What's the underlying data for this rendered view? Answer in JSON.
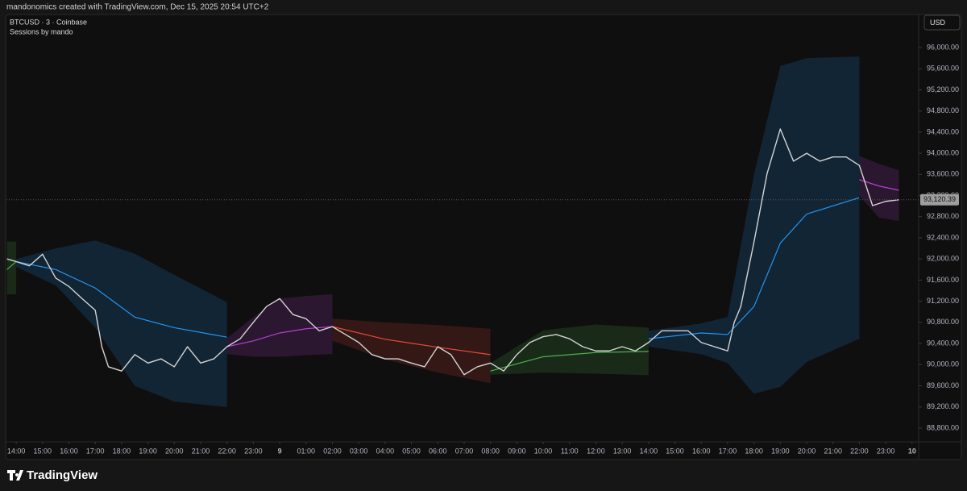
{
  "header": {
    "text": "mandonomics created with TradingView.com, Dec 15, 2025 20:54 UTC+2"
  },
  "chart_data": {
    "type": "line",
    "title": "BTCUSD · 3 · Coinbase",
    "subtitle": "Sessions by mando",
    "currency": "USD",
    "x": [
      13.65,
      14,
      14.5,
      15,
      15.5,
      16,
      16.5,
      17,
      17.25,
      17.5,
      18,
      18.5,
      19,
      19.5,
      20,
      20.5,
      21,
      21.5,
      22,
      22.5,
      23,
      23.5,
      24,
      24.5,
      25,
      25.5,
      26,
      26.5,
      27,
      27.5,
      28,
      28.5,
      29,
      29.5,
      30,
      30.5,
      31,
      31.5,
      32,
      32.5,
      33,
      33.5,
      34,
      34.5,
      35,
      35.5,
      36,
      36.5,
      37,
      37.5,
      38,
      38.5,
      39,
      39.5,
      40,
      40.5,
      41,
      41.25,
      41.5,
      42,
      42.5,
      43,
      43.5,
      44,
      44.5,
      45,
      45.5,
      46,
      46.5,
      47,
      47.5
    ],
    "series": [
      {
        "color": "#d4d4d4",
        "values": [
          92000,
          91950,
          91870,
          92090,
          91640,
          91480,
          91250,
          91030,
          90340,
          89960,
          89880,
          90190,
          90030,
          90110,
          89960,
          90340,
          90030,
          90110,
          90340,
          90490,
          90800,
          91100,
          91250,
          90950,
          90870,
          90640,
          90720,
          90570,
          90420,
          90190,
          90110,
          90110,
          90030,
          89960,
          90340,
          90190,
          89810,
          89960,
          90030,
          89880,
          90190,
          90420,
          90530,
          90570,
          90490,
          90340,
          90260,
          90260,
          90340,
          90260,
          90420,
          90640,
          90640,
          90640,
          90420,
          90340,
          90260,
          90800,
          91100,
          92320,
          93620,
          94460,
          93850,
          94000,
          93850,
          93930,
          93930,
          93770,
          93010,
          93090,
          93120
        ]
      }
    ],
    "last_price": {
      "value": 93120.39,
      "label": "93,120.39"
    },
    "sessions": [
      {
        "color": "#4caf50",
        "x": [
          13.65,
          14
        ],
        "vwap": [
          91800,
          91950
        ],
        "upper": [
          92330,
          92330
        ],
        "lower": [
          91330,
          91330
        ]
      },
      {
        "color": "#2196f3",
        "x": [
          14,
          15.5,
          17,
          18.5,
          20,
          22
        ],
        "vwap": [
          91950,
          91800,
          91450,
          90900,
          90700,
          90520
        ],
        "upper": [
          92000,
          92200,
          92350,
          92100,
          91700,
          91180
        ],
        "lower": [
          91850,
          91500,
          90700,
          89600,
          89300,
          89200
        ]
      },
      {
        "color": "#b63fd0",
        "x": [
          22,
          23,
          24,
          25,
          26
        ],
        "vwap": [
          90340,
          90450,
          90600,
          90680,
          90720
        ],
        "upper": [
          90500,
          90900,
          91250,
          91300,
          91330
        ],
        "lower": [
          90200,
          90150,
          90150,
          90180,
          90200
        ]
      },
      {
        "color": "#e8483a",
        "x": [
          26,
          28,
          30,
          32
        ],
        "vwap": [
          90720,
          90480,
          90330,
          90190
        ],
        "upper": [
          90870,
          90800,
          90750,
          90680
        ],
        "lower": [
          90450,
          90100,
          89850,
          89650
        ]
      },
      {
        "color": "#4caf50",
        "x": [
          32,
          34,
          36,
          38
        ],
        "vwap": [
          89880,
          90150,
          90230,
          90250
        ],
        "upper": [
          90030,
          90650,
          90760,
          90700
        ],
        "lower": [
          89810,
          89850,
          89830,
          89800
        ]
      },
      {
        "color": "#2196f3",
        "x": [
          38,
          40,
          41,
          42,
          43,
          44,
          46
        ],
        "vwap": [
          90490,
          90600,
          90570,
          91100,
          92300,
          92850,
          93160
        ],
        "upper": [
          90640,
          90780,
          90900,
          93600,
          95650,
          95800,
          95830
        ],
        "lower": [
          90340,
          90200,
          90030,
          89450,
          89580,
          90050,
          90490
        ]
      },
      {
        "color": "#b63fd0",
        "x": [
          46,
          46.75,
          47.5
        ],
        "vwap": [
          93500,
          93380,
          93300
        ],
        "upper": [
          93950,
          93800,
          93680
        ],
        "lower": [
          93200,
          92780,
          92720
        ]
      }
    ],
    "xlim": [
      13.63,
      48.25
    ],
    "xticks": [
      {
        "value": 14,
        "label": "14:00"
      },
      {
        "value": 15,
        "label": "15:00"
      },
      {
        "value": 16,
        "label": "16:00"
      },
      {
        "value": 17,
        "label": "17:00"
      },
      {
        "value": 18,
        "label": "18:00"
      },
      {
        "value": 19,
        "label": "19:00"
      },
      {
        "value": 20,
        "label": "20:00"
      },
      {
        "value": 21,
        "label": "21:00"
      },
      {
        "value": 22,
        "label": "22:00"
      },
      {
        "value": 23,
        "label": "23:00"
      },
      {
        "value": 24,
        "label": "9"
      },
      {
        "value": 25,
        "label": "01:00"
      },
      {
        "value": 26,
        "label": "02:00"
      },
      {
        "value": 27,
        "label": "03:00"
      },
      {
        "value": 28,
        "label": "04:00"
      },
      {
        "value": 29,
        "label": "05:00"
      },
      {
        "value": 30,
        "label": "06:00"
      },
      {
        "value": 31,
        "label": "07:00"
      },
      {
        "value": 32,
        "label": "08:00"
      },
      {
        "value": 33,
        "label": "09:00"
      },
      {
        "value": 34,
        "label": "10:00"
      },
      {
        "value": 35,
        "label": "11:00"
      },
      {
        "value": 36,
        "label": "12:00"
      },
      {
        "value": 37,
        "label": "13:00"
      },
      {
        "value": 38,
        "label": "14:00"
      },
      {
        "value": 39,
        "label": "15:00"
      },
      {
        "value": 40,
        "label": "16:00"
      },
      {
        "value": 41,
        "label": "17:00"
      },
      {
        "value": 42,
        "label": "18:00"
      },
      {
        "value": 43,
        "label": "19:00"
      },
      {
        "value": 44,
        "label": "20:00"
      },
      {
        "value": 45,
        "label": "21:00"
      },
      {
        "value": 46,
        "label": "22:00"
      },
      {
        "value": 47,
        "label": "23:00"
      },
      {
        "value": 48,
        "label": "10"
      }
    ],
    "ylim": [
      88540,
      96290
    ],
    "yticks": [
      {
        "value": 88800,
        "label": "88,800.00"
      },
      {
        "value": 89200,
        "label": "89,200.00"
      },
      {
        "value": 89600,
        "label": "89,600.00"
      },
      {
        "value": 90000,
        "label": "90,000.00"
      },
      {
        "value": 90400,
        "label": "90,400.00"
      },
      {
        "value": 90800,
        "label": "90,800.00"
      },
      {
        "value": 91200,
        "label": "91,200.00"
      },
      {
        "value": 91600,
        "label": "91,600.00"
      },
      {
        "value": 92000,
        "label": "92,000.00"
      },
      {
        "value": 92400,
        "label": "92,400.00"
      },
      {
        "value": 92800,
        "label": "92,800.00"
      },
      {
        "value": 93200,
        "label": "93,200.00"
      },
      {
        "value": 93600,
        "label": "93,600.00"
      },
      {
        "value": 94000,
        "label": "94,000.00"
      },
      {
        "value": 94400,
        "label": "94,400.00"
      },
      {
        "value": 94800,
        "label": "94,800.00"
      },
      {
        "value": 95200,
        "label": "95,200.00"
      },
      {
        "value": 95600,
        "label": "95,600.00"
      },
      {
        "value": 96000,
        "label": "96,000.00"
      }
    ]
  },
  "footer": {
    "brand": "TradingView"
  }
}
